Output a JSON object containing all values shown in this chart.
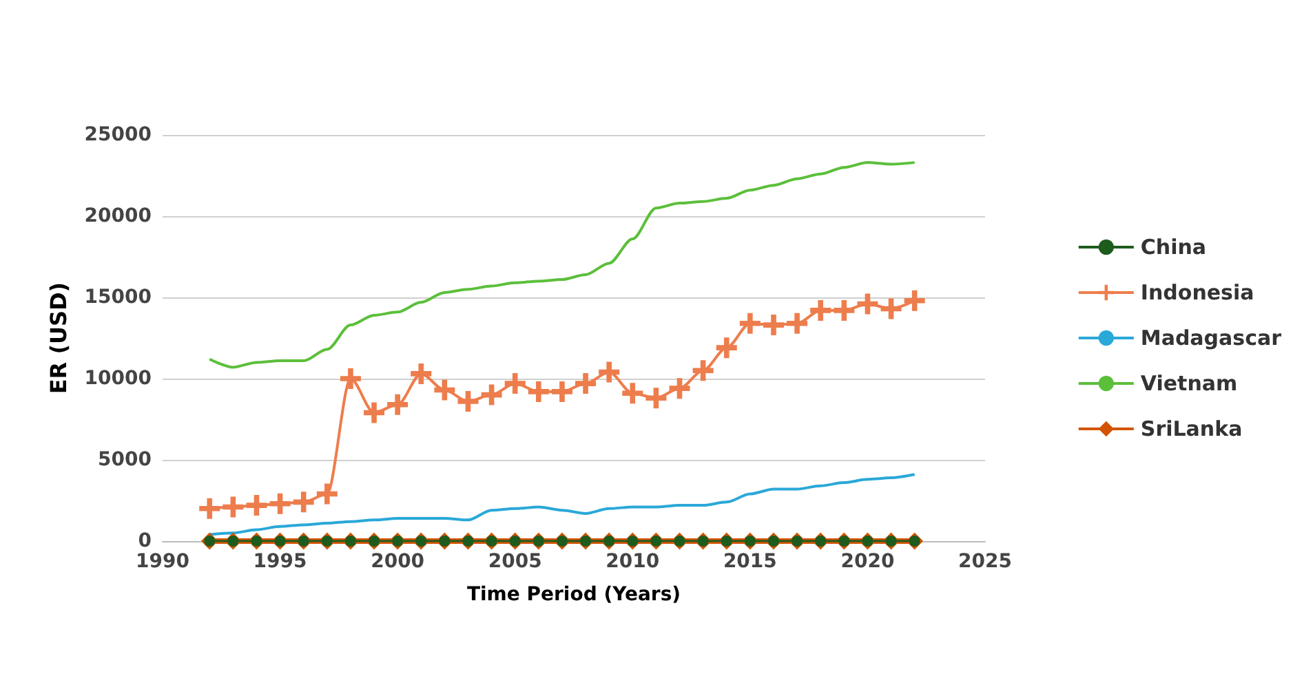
{
  "chart_data": {
    "type": "line",
    "xlabel": "Time Period (Years)",
    "ylabel": "ER (USD)",
    "x": [
      1992,
      1993,
      1994,
      1995,
      1996,
      1997,
      1998,
      1999,
      2000,
      2001,
      2002,
      2003,
      2004,
      2005,
      2006,
      2007,
      2008,
      2009,
      2010,
      2011,
      2012,
      2013,
      2014,
      2015,
      2016,
      2017,
      2018,
      2019,
      2020,
      2021,
      2022
    ],
    "xlim": [
      1990,
      2025
    ],
    "xticks": [
      1990,
      1995,
      2000,
      2005,
      2010,
      2015,
      2020,
      2025
    ],
    "ylim": [
      0,
      25000
    ],
    "yticks": [
      0,
      5000,
      10000,
      15000,
      20000,
      25000
    ],
    "grid": "y",
    "legend": "right",
    "series": [
      {
        "name": "China",
        "color": "#1e5c1e",
        "marker": "circle",
        "values": [
          0,
          0,
          0,
          0,
          0,
          0,
          0,
          0,
          0,
          0,
          0,
          0,
          0,
          0,
          0,
          0,
          0,
          0,
          0,
          0,
          0,
          0,
          0,
          0,
          0,
          0,
          0,
          0,
          0,
          0,
          0
        ]
      },
      {
        "name": "Indonesia",
        "color": "#ed7d4c",
        "marker": "cross",
        "values": [
          2000,
          2100,
          2200,
          2300,
          2400,
          2900,
          10000,
          7900,
          8400,
          10300,
          9300,
          8600,
          9000,
          9700,
          9200,
          9200,
          9700,
          10400,
          9100,
          8800,
          9400,
          10500,
          11900,
          13400,
          13300,
          13400,
          14200,
          14200,
          14600,
          14300,
          14800
        ]
      },
      {
        "name": "Madagascar",
        "color": "#2aa8d8",
        "marker": "none",
        "values": [
          400,
          500,
          700,
          900,
          1000,
          1100,
          1200,
          1300,
          1400,
          1400,
          1400,
          1300,
          1900,
          2000,
          2100,
          1900,
          1700,
          2000,
          2100,
          2100,
          2200,
          2200,
          2400,
          2900,
          3200,
          3200,
          3400,
          3600,
          3800,
          3900,
          4100
        ]
      },
      {
        "name": "Vietnam",
        "color": "#5bbf3a",
        "marker": "none",
        "values": [
          11200,
          10700,
          11000,
          11100,
          11100,
          11800,
          13300,
          13900,
          14100,
          14700,
          15300,
          15500,
          15700,
          15900,
          16000,
          16100,
          16400,
          17100,
          18600,
          20500,
          20800,
          20900,
          21100,
          21600,
          21900,
          22300,
          22600,
          23000,
          23300,
          23200,
          23300
        ]
      },
      {
        "name": "SriLanka",
        "color": "#d35400",
        "marker": "diamond",
        "values": [
          0,
          0,
          0,
          0,
          0,
          0,
          0,
          0,
          0,
          0,
          0,
          0,
          0,
          0,
          0,
          0,
          0,
          0,
          0,
          0,
          0,
          0,
          0,
          0,
          0,
          0,
          0,
          0,
          0,
          0,
          0
        ]
      }
    ]
  }
}
